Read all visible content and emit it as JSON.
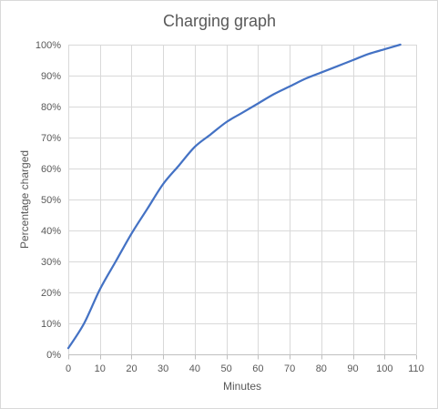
{
  "chart_data": {
    "type": "line",
    "title": "Charging graph",
    "xlabel": "Minutes",
    "ylabel": "Percentage charged",
    "xlim": [
      0,
      110
    ],
    "ylim": [
      0,
      100
    ],
    "x_ticks": [
      0,
      10,
      20,
      30,
      40,
      50,
      60,
      70,
      80,
      90,
      100,
      110
    ],
    "y_ticks": [
      0,
      10,
      20,
      30,
      40,
      50,
      60,
      70,
      80,
      90,
      100
    ],
    "x_tick_labels": [
      "0",
      "10",
      "20",
      "30",
      "40",
      "50",
      "60",
      "70",
      "80",
      "90",
      "100",
      "110"
    ],
    "y_tick_labels": [
      "0%",
      "10%",
      "20%",
      "30%",
      "40%",
      "50%",
      "60%",
      "70%",
      "80%",
      "90%",
      "100%"
    ],
    "grid": true,
    "legend": "none",
    "colors": {
      "line": "#4472c4",
      "grid": "#d9d9d9",
      "text": "#595959"
    },
    "series": [
      {
        "x": [
          0,
          5,
          10,
          15,
          20,
          25,
          30,
          35,
          40,
          45,
          50,
          55,
          60,
          65,
          70,
          75,
          80,
          85,
          90,
          95,
          100,
          105
        ],
        "y": [
          2,
          10,
          21,
          30,
          39,
          47,
          55,
          61,
          67,
          71,
          75,
          78,
          81,
          84,
          86.5,
          89,
          91,
          93,
          95,
          97,
          98.5,
          100
        ]
      }
    ]
  }
}
